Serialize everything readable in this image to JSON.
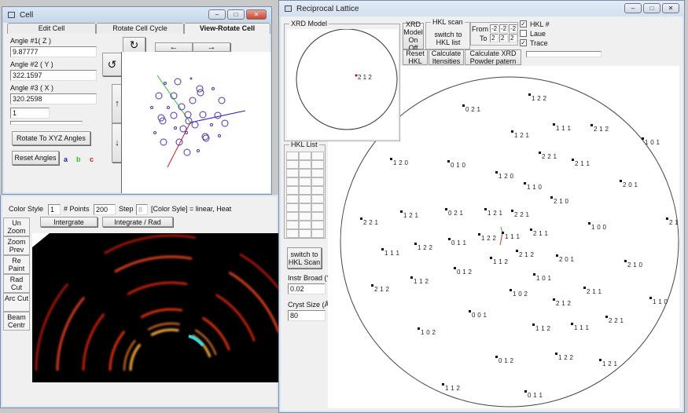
{
  "cell_window": {
    "title": "Cell",
    "tabs": [
      "Edit Cell",
      "Rotate Cell Cycle",
      "View-Rotate Cell"
    ],
    "active_tab": "View-Rotate Cell",
    "angle1_label": "Angle #1( Z )",
    "angle1_value": "9.87777",
    "angle2_label": "Angle #2 ( Y )",
    "angle2_value": "322.1597",
    "angle3_label": "Angle #3 ( X )",
    "angle3_value": "320.2598",
    "step_value": "1",
    "rotate_button": "Rotate To XYZ Angles",
    "reset_button": "Reset Angles",
    "axis_a": "a",
    "axis_b": "b",
    "axis_c": "c",
    "colors": {
      "a": "#2020c0",
      "b": "#30c030",
      "c": "#d02020"
    },
    "rotate_cw_icon": "↻",
    "rotate_ccw_icon": "↺",
    "left_icon": "←",
    "right_icon": "→",
    "up_icon": "↑",
    "down_icon": "↓"
  },
  "integrate_window": {
    "color_style_label": "Color Style",
    "color_style_value": "1",
    "points_label": "# Points",
    "points_value": "200",
    "step_label": "Step",
    "step_value": "8",
    "legend_text": "[Color Syle] = linear, Heat",
    "integrate_button": "Intergrate",
    "integrate_rad_button": "Integrate / Rad",
    "side_buttons": [
      "Un Zoom",
      "Zoom Prev",
      "Re Paint",
      "Rad Cut",
      "Arc Cut",
      "Beam Centr"
    ]
  },
  "lattice_window": {
    "title": "Reciprocal Lattice",
    "xrd_model_caption": "XRD Model",
    "model_point_label": "2 1 2",
    "xrd_onoff_button": "XRD Model On Off",
    "hkl_scan_caption": "HKL scan",
    "switch_hkl_list_button": "switch to HKL list",
    "from_label": "From",
    "to_label": "To",
    "from_values": [
      "-2",
      "-2",
      "-2"
    ],
    "to_values": [
      "2",
      "2",
      "2"
    ],
    "hkl_checkbox": {
      "label": "HKL #",
      "checked": true
    },
    "laue_checkbox": {
      "label": "Laue",
      "checked": false
    },
    "trace_checkbox": {
      "label": "Trace",
      "checked": true
    },
    "reset_hkl_button": "Reset HKL",
    "calc_intensities_button": "Calculate Itensities",
    "calc_powder_button": "Calculate XRD Powder patern",
    "hkl_list_caption": "HKL List",
    "switch_hkl_scan_button": "switch to HKL Scan",
    "instr_broad_label": "Instr Broad (°)",
    "instr_broad_value": "0.02",
    "cryst_size_label": "Cryst Size (Å)",
    "cryst_size_value": "80",
    "reflections": [
      "1 2 2",
      "0 2 1",
      "1 1 1",
      "2 1 2",
      "1 2 1",
      "1 0 1",
      "1 2 0",
      "0 1 0",
      "2 2 1",
      "2 1 1",
      "1 2 0",
      "1 1 0",
      "2 0 1",
      "2 1 0",
      "2 2 1",
      "1 2 1",
      "0 2 1",
      "1 2 1",
      "2 2 1",
      "1 0 0",
      "2 1",
      "2 1 1",
      "1 1 1",
      "1 2 2",
      "0 1 1",
      "1 2 2",
      "1 1 1",
      "2 1 2",
      "1 1 2",
      "2 0 1",
      "2 1 0",
      "0 1 2",
      "1 0 1",
      "1 1 2",
      "2 1 2",
      "1 0 2",
      "2 1 1",
      "1 1 0",
      "2 1 2",
      "0 0 1",
      "2 2 1",
      "1 1 2",
      "1 1 1",
      "1 0 2",
      "0 1 2",
      "1 2 2",
      "1 2 1",
      "1 1 2",
      "0 1 1"
    ]
  }
}
